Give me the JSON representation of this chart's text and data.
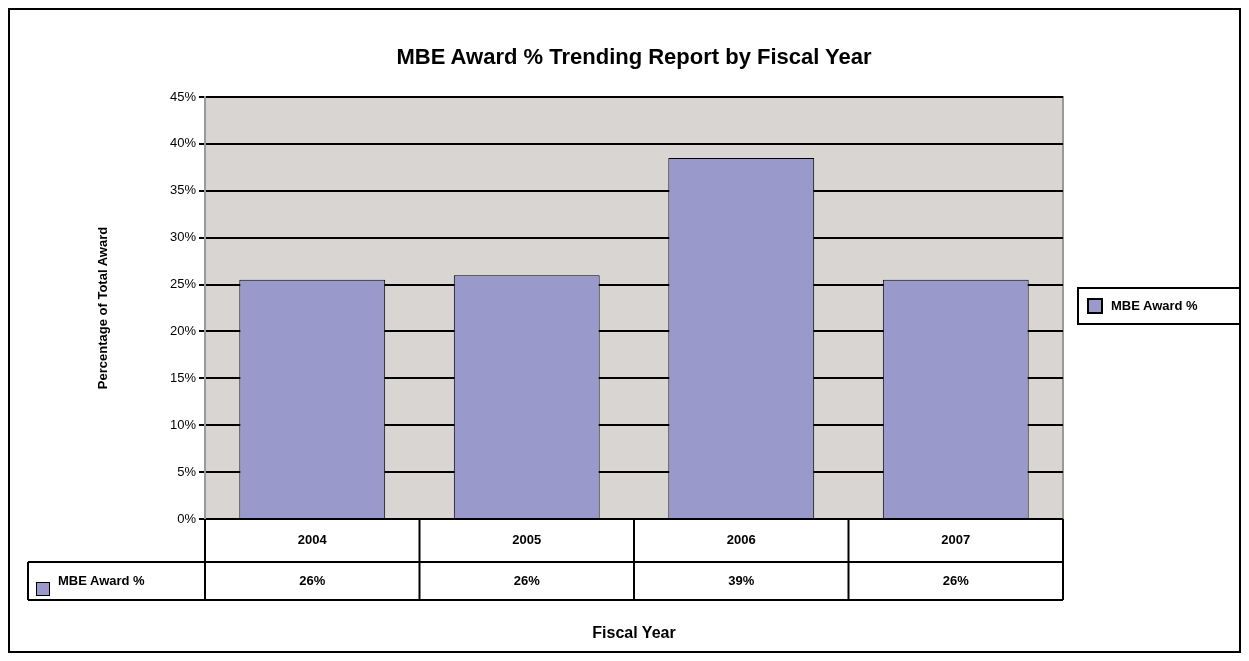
{
  "chart_data": {
    "type": "bar",
    "title": "MBE Award % Trending Report by Fiscal Year",
    "xlabel": "Fiscal Year",
    "ylabel": "Percentage of Total Award",
    "categories": [
      "2004",
      "2005",
      "2006",
      "2007"
    ],
    "series": [
      {
        "name": "MBE Award %",
        "color": "#9999cc",
        "values": [
          25.5,
          26,
          38.5,
          25.5
        ],
        "value_labels": [
          "26%",
          "26%",
          "39%",
          "26%"
        ]
      }
    ],
    "ylim": [
      0,
      45
    ],
    "yticks": [
      {
        "value": 0,
        "label": "0%"
      },
      {
        "value": 5,
        "label": "5%"
      },
      {
        "value": 10,
        "label": "10%"
      },
      {
        "value": 15,
        "label": "15%"
      },
      {
        "value": 20,
        "label": "20%"
      },
      {
        "value": 25,
        "label": "25%"
      },
      {
        "value": 30,
        "label": "30%"
      },
      {
        "value": 35,
        "label": "35%"
      },
      {
        "value": 40,
        "label": "40%"
      },
      {
        "value": 45,
        "label": "45%"
      }
    ],
    "grid": "y",
    "legend": "right"
  }
}
